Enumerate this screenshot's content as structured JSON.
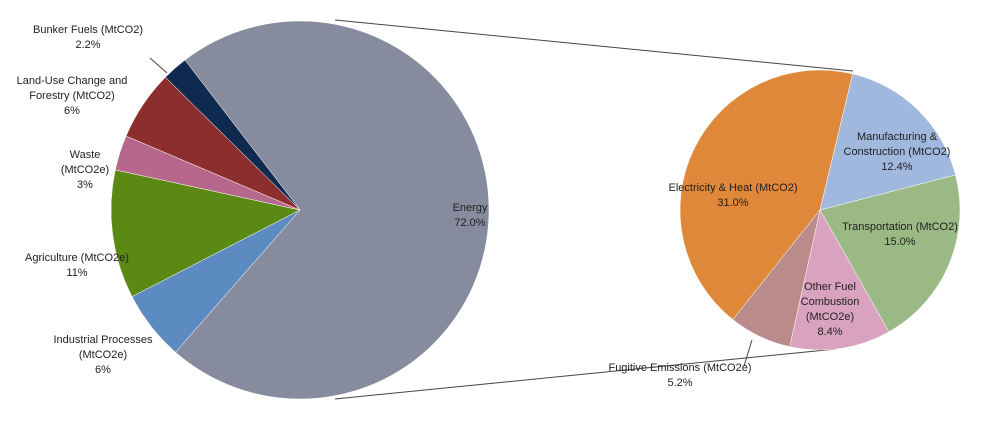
{
  "chart_data": [
    {
      "type": "pie",
      "categories": [
        "Energy",
        "Industrial Processes (MtCO2e)",
        "Agriculture (MtCO2e)",
        "Waste (MtCO2e)",
        "Land-Use Change and Forestry (MtCO2)",
        "Bunker Fuels (MtCO2)"
      ],
      "values": [
        72.0,
        6,
        11,
        3,
        6,
        2.2
      ],
      "value_labels": [
        "72.0%",
        "6%",
        "11%",
        "3%",
        "6%",
        "2.2%"
      ],
      "colors": [
        "#868b9d",
        "#5b8bc0",
        "#5a8a14",
        "#b7678c",
        "#8c2e2e",
        "#10294f"
      ]
    },
    {
      "type": "pie",
      "categories": [
        "Electricity & Heat (MtCO2)",
        "Manufacturing & Construction (MtCO2)",
        "Transportation (MtCO2)",
        "Other Fuel Combustion (MtCO2e)",
        "Fugitive Emissions (MtCO2e)"
      ],
      "values": [
        31.0,
        12.4,
        15.0,
        8.4,
        5.2
      ],
      "value_labels": [
        "31.0%",
        "12.4%",
        "15.0%",
        "8.4%",
        "5.2%"
      ],
      "colors": [
        "#e0883a",
        "#a0b8dd",
        "#9bb984",
        "#d9a2bf",
        "#b98b8a"
      ]
    }
  ]
}
